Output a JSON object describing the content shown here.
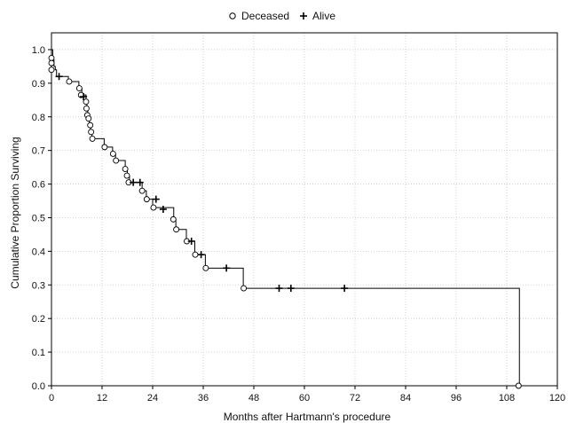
{
  "chart_data": {
    "type": "line",
    "xlabel": "Months after Hartmann's procedure",
    "ylabel": "Cumulative Proportion Surviving",
    "xlim": [
      0,
      120
    ],
    "ylim": [
      0,
      1.05
    ],
    "x_ticks": [
      0,
      12,
      24,
      36,
      48,
      60,
      72,
      84,
      96,
      108,
      120
    ],
    "y_ticks": [
      "0.0",
      "0.1",
      "0.2",
      "0.3",
      "0.4",
      "0.5",
      "0.6",
      "0.7",
      "0.8",
      "0.9",
      "1.0"
    ],
    "grid": true,
    "legend_position": "top-center",
    "legend": [
      {
        "name": "Deceased",
        "marker": "circle"
      },
      {
        "name": "Alive",
        "marker": "plus"
      }
    ],
    "steps": [
      [
        0,
        1.0
      ],
      [
        0.3,
        0.97
      ],
      [
        0.6,
        0.95
      ],
      [
        0.9,
        0.94
      ],
      [
        1.2,
        0.92
      ],
      [
        4,
        0.905
      ],
      [
        6.5,
        0.885
      ],
      [
        7.2,
        0.865
      ],
      [
        8.2,
        0.845
      ],
      [
        8.4,
        0.825
      ],
      [
        8.6,
        0.8
      ],
      [
        9.0,
        0.78
      ],
      [
        9.3,
        0.755
      ],
      [
        9.6,
        0.735
      ],
      [
        12.5,
        0.71
      ],
      [
        14.5,
        0.69
      ],
      [
        15.2,
        0.67
      ],
      [
        17.5,
        0.645
      ],
      [
        18.0,
        0.625
      ],
      [
        18.5,
        0.605
      ],
      [
        21.5,
        0.58
      ],
      [
        22.5,
        0.555
      ],
      [
        24.0,
        0.53
      ],
      [
        29.0,
        0.495
      ],
      [
        29.5,
        0.465
      ],
      [
        32.0,
        0.43
      ],
      [
        34.0,
        0.39
      ],
      [
        36.5,
        0.35
      ],
      [
        45.5,
        0.29
      ],
      [
        111.0,
        0.0
      ]
    ],
    "end_x": 111.0,
    "deceased_points": [
      [
        0,
        0.975
      ],
      [
        0,
        0.96
      ],
      [
        0,
        0.94
      ],
      [
        4.2,
        0.905
      ],
      [
        6.6,
        0.885
      ],
      [
        7.0,
        0.865
      ],
      [
        8.2,
        0.845
      ],
      [
        8.3,
        0.825
      ],
      [
        8.5,
        0.805
      ],
      [
        8.8,
        0.795
      ],
      [
        9.2,
        0.775
      ],
      [
        9.4,
        0.755
      ],
      [
        9.7,
        0.735
      ],
      [
        12.6,
        0.71
      ],
      [
        14.6,
        0.69
      ],
      [
        15.3,
        0.67
      ],
      [
        17.5,
        0.645
      ],
      [
        17.9,
        0.625
      ],
      [
        18.3,
        0.605
      ],
      [
        21.5,
        0.58
      ],
      [
        22.6,
        0.555
      ],
      [
        24.2,
        0.53
      ],
      [
        28.9,
        0.495
      ],
      [
        29.6,
        0.465
      ],
      [
        32.1,
        0.43
      ],
      [
        34.1,
        0.39
      ],
      [
        36.6,
        0.35
      ],
      [
        45.6,
        0.29
      ],
      [
        110.8,
        0.0
      ]
    ],
    "alive_points": [
      [
        1.8,
        0.92
      ],
      [
        7.6,
        0.86
      ],
      [
        19.4,
        0.605
      ],
      [
        21.0,
        0.605
      ],
      [
        24.8,
        0.555
      ],
      [
        26.5,
        0.525
      ],
      [
        33.2,
        0.43
      ],
      [
        35.5,
        0.39
      ],
      [
        41.5,
        0.35
      ],
      [
        54.0,
        0.29
      ],
      [
        56.8,
        0.29
      ],
      [
        69.5,
        0.29
      ]
    ]
  }
}
